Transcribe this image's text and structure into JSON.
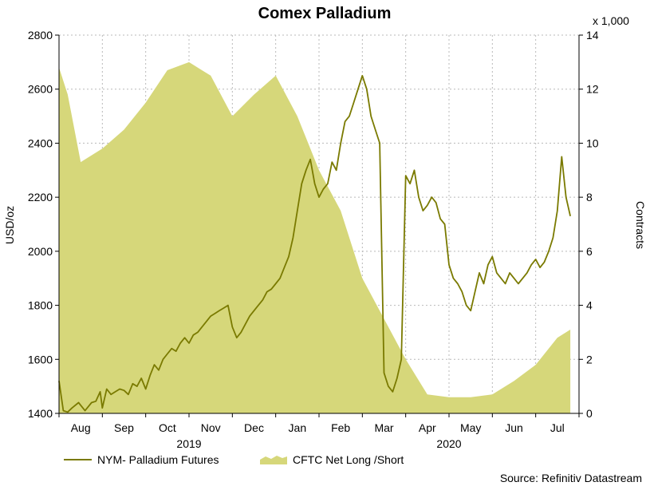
{
  "chart_data": {
    "type": "line",
    "title": "Comex Palladium",
    "source": "Source: Refinitiv Datastream",
    "y_left": {
      "label": "USD/oz",
      "min": 1400,
      "max": 2800,
      "ticks": [
        1400,
        1600,
        1800,
        2000,
        2200,
        2400,
        2600,
        2800
      ]
    },
    "y_right": {
      "label": "Contracts",
      "unit_label": "x 1,000",
      "min": 0,
      "max": 14,
      "ticks": [
        0,
        2,
        4,
        6,
        8,
        10,
        12,
        14
      ]
    },
    "x_axis": {
      "months": [
        "Aug",
        "Sep",
        "Oct",
        "Nov",
        "Dec",
        "Jan",
        "Feb",
        "Mar",
        "Apr",
        "May",
        "Jun",
        "Jul"
      ],
      "years": [
        "2019",
        "2020"
      ]
    },
    "legend": {
      "placement": "bottom-left"
    },
    "grid": true,
    "colors": {
      "line": "#7a7a00",
      "area": "#d6d77a",
      "grid": "#b9b9b9"
    },
    "series": [
      {
        "name": "NYM- Palladium Futures",
        "type": "line",
        "axis": "left",
        "x": [
          0.0,
          0.1,
          0.2,
          0.3,
          0.45,
          0.6,
          0.75,
          0.85,
          0.95,
          1.0,
          1.1,
          1.2,
          1.3,
          1.4,
          1.5,
          1.6,
          1.7,
          1.8,
          1.9,
          2.0,
          2.1,
          2.2,
          2.3,
          2.4,
          2.5,
          2.6,
          2.7,
          2.8,
          2.9,
          3.0,
          3.1,
          3.2,
          3.3,
          3.4,
          3.5,
          3.6,
          3.7,
          3.8,
          3.9,
          4.0,
          4.1,
          4.2,
          4.3,
          4.4,
          4.5,
          4.6,
          4.7,
          4.8,
          4.9,
          5.0,
          5.1,
          5.2,
          5.3,
          5.4,
          5.5,
          5.6,
          5.7,
          5.8,
          5.9,
          6.0,
          6.1,
          6.2,
          6.3,
          6.4,
          6.5,
          6.6,
          6.7,
          6.8,
          6.9,
          7.0,
          7.1,
          7.2,
          7.3,
          7.4,
          7.5,
          7.6,
          7.7,
          7.8,
          7.9,
          8.0,
          8.1,
          8.2,
          8.3,
          8.4,
          8.5,
          8.6,
          8.7,
          8.8,
          8.9,
          9.0,
          9.1,
          9.2,
          9.3,
          9.4,
          9.5,
          9.6,
          9.7,
          9.8,
          9.9,
          10.0,
          10.1,
          10.2,
          10.3,
          10.4,
          10.5,
          10.6,
          10.7,
          10.8,
          10.9,
          11.0,
          11.1,
          11.2,
          11.3,
          11.4,
          11.5,
          11.6,
          11.7,
          11.8
        ],
        "y": [
          1520,
          1410,
          1405,
          1420,
          1440,
          1410,
          1440,
          1445,
          1480,
          1420,
          1490,
          1470,
          1480,
          1490,
          1485,
          1470,
          1510,
          1500,
          1530,
          1490,
          1540,
          1580,
          1560,
          1600,
          1620,
          1640,
          1630,
          1660,
          1680,
          1660,
          1690,
          1700,
          1720,
          1740,
          1760,
          1770,
          1780,
          1790,
          1800,
          1720,
          1680,
          1700,
          1730,
          1760,
          1780,
          1800,
          1820,
          1850,
          1860,
          1880,
          1900,
          1940,
          1980,
          2050,
          2150,
          2250,
          2300,
          2340,
          2250,
          2200,
          2230,
          2250,
          2330,
          2300,
          2400,
          2480,
          2500,
          2550,
          2600,
          2650,
          2600,
          2500,
          2450,
          2400,
          1550,
          1500,
          1480,
          1530,
          1600,
          2280,
          2250,
          2300,
          2200,
          2150,
          2170,
          2200,
          2180,
          2120,
          2100,
          1950,
          1900,
          1880,
          1850,
          1800,
          1780,
          1850,
          1920,
          1880,
          1950,
          1980,
          1920,
          1900,
          1880,
          1920,
          1900,
          1880,
          1900,
          1920,
          1950,
          1970,
          1940,
          1960,
          2000,
          2050,
          2150,
          2350,
          2200,
          2130
        ]
      },
      {
        "name": "CFTC Net Long /Short",
        "type": "area",
        "axis": "right",
        "x": [
          0.0,
          0.2,
          0.5,
          1.0,
          1.5,
          2.0,
          2.5,
          3.0,
          3.5,
          4.0,
          4.5,
          5.0,
          5.5,
          6.0,
          6.5,
          7.0,
          7.5,
          8.0,
          8.5,
          9.0,
          9.5,
          10.0,
          10.5,
          11.0,
          11.5,
          11.8
        ],
        "y": [
          12.8,
          11.8,
          9.3,
          9.8,
          10.5,
          11.5,
          12.7,
          13.0,
          12.5,
          11.0,
          11.8,
          12.5,
          11.0,
          9.0,
          7.5,
          5.0,
          3.5,
          2.0,
          0.7,
          0.6,
          0.6,
          0.7,
          1.2,
          1.8,
          2.8,
          3.1
        ]
      }
    ]
  }
}
